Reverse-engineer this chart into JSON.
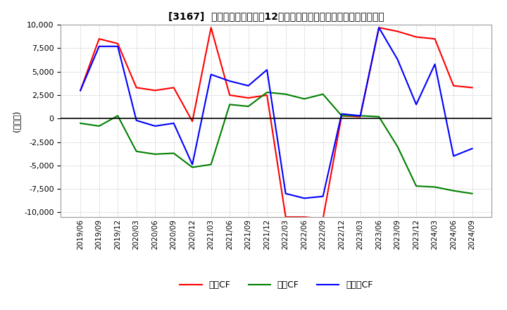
{
  "title": "[3167]  キャッシュフローの12か月移動合計の対前年同期増減額の推移",
  "ylabel": "(百万円)",
  "ylim": [
    -10500,
    10000
  ],
  "yticks": [
    -10000,
    -7500,
    -5000,
    -2500,
    0,
    2500,
    5000,
    7500,
    10000
  ],
  "colors": {
    "eigyo": "#ff0000",
    "toshi": "#008000",
    "free": "#0000ff"
  },
  "legend_labels": [
    "営業CF",
    "投資CF",
    "フリーCF"
  ],
  "x_labels": [
    "2019/06",
    "2019/09",
    "2019/12",
    "2020/03",
    "2020/06",
    "2020/09",
    "2020/12",
    "2021/03",
    "2021/06",
    "2021/09",
    "2021/12",
    "2022/03",
    "2022/06",
    "2022/09",
    "2022/12",
    "2023/03",
    "2023/06",
    "2023/09",
    "2023/12",
    "2024/03",
    "2024/06",
    "2024/09"
  ],
  "eigyo": [
    3000,
    8500,
    8000,
    3300,
    3000,
    3300,
    -300,
    9700,
    2500,
    2200,
    2500,
    -10500,
    -10500,
    -10700,
    300,
    200,
    9700,
    9300,
    8700,
    8500,
    3500,
    3300
  ],
  "toshi": [
    -500,
    -800,
    300,
    -3500,
    -3800,
    -3700,
    -5200,
    -4900,
    1500,
    1300,
    2800,
    2600,
    2100,
    2600,
    300,
    300,
    200,
    -3000,
    -7200,
    -7300,
    -7700,
    -8000
  ],
  "free": [
    3000,
    7700,
    7700,
    -200,
    -800,
    -500,
    -4900,
    4700,
    4000,
    3500,
    5200,
    -8000,
    -8500,
    -8300,
    500,
    300,
    9700,
    6300,
    1500,
    5800,
    -4000,
    -3200
  ],
  "background_color": "#ffffff",
  "grid_color": "#bbbbbb",
  "grid_style": ":"
}
